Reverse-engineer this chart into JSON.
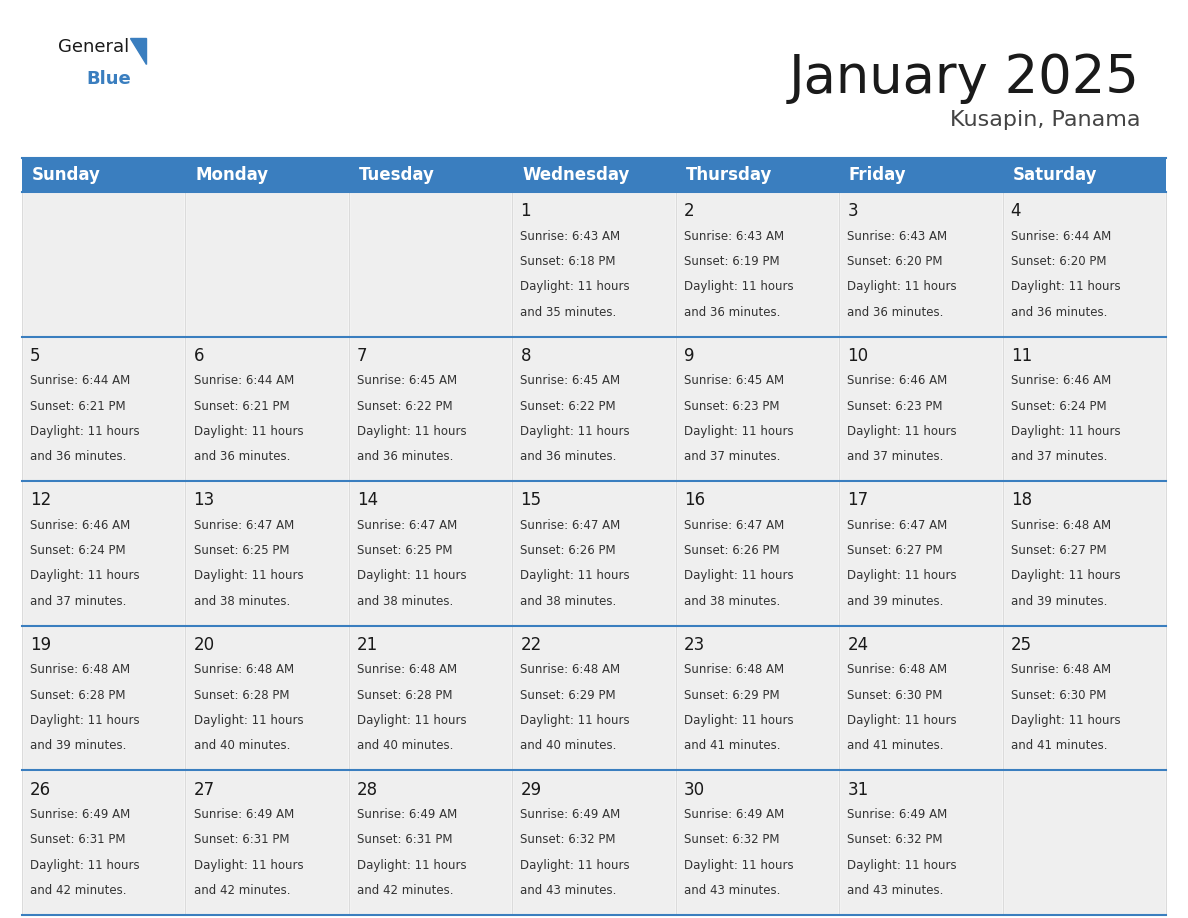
{
  "title": "January 2025",
  "subtitle": "Kusapin, Panama",
  "header_color": "#3a7ebf",
  "header_text_color": "#ffffff",
  "cell_bg_color": "#efefef",
  "border_color": "#3a7ebf",
  "day_names": [
    "Sunday",
    "Monday",
    "Tuesday",
    "Wednesday",
    "Thursday",
    "Friday",
    "Saturday"
  ],
  "title_fontsize": 38,
  "subtitle_fontsize": 16,
  "header_fontsize": 12,
  "day_num_fontsize": 12,
  "cell_text_fontsize": 8.5,
  "logo_general_fontsize": 13,
  "logo_blue_fontsize": 13,
  "days": [
    {
      "day": 1,
      "col": 3,
      "row": 0,
      "sunrise": "6:43 AM",
      "sunset": "6:18 PM",
      "daylight_hours": 11,
      "daylight_minutes": 35
    },
    {
      "day": 2,
      "col": 4,
      "row": 0,
      "sunrise": "6:43 AM",
      "sunset": "6:19 PM",
      "daylight_hours": 11,
      "daylight_minutes": 36
    },
    {
      "day": 3,
      "col": 5,
      "row": 0,
      "sunrise": "6:43 AM",
      "sunset": "6:20 PM",
      "daylight_hours": 11,
      "daylight_minutes": 36
    },
    {
      "day": 4,
      "col": 6,
      "row": 0,
      "sunrise": "6:44 AM",
      "sunset": "6:20 PM",
      "daylight_hours": 11,
      "daylight_minutes": 36
    },
    {
      "day": 5,
      "col": 0,
      "row": 1,
      "sunrise": "6:44 AM",
      "sunset": "6:21 PM",
      "daylight_hours": 11,
      "daylight_minutes": 36
    },
    {
      "day": 6,
      "col": 1,
      "row": 1,
      "sunrise": "6:44 AM",
      "sunset": "6:21 PM",
      "daylight_hours": 11,
      "daylight_minutes": 36
    },
    {
      "day": 7,
      "col": 2,
      "row": 1,
      "sunrise": "6:45 AM",
      "sunset": "6:22 PM",
      "daylight_hours": 11,
      "daylight_minutes": 36
    },
    {
      "day": 8,
      "col": 3,
      "row": 1,
      "sunrise": "6:45 AM",
      "sunset": "6:22 PM",
      "daylight_hours": 11,
      "daylight_minutes": 36
    },
    {
      "day": 9,
      "col": 4,
      "row": 1,
      "sunrise": "6:45 AM",
      "sunset": "6:23 PM",
      "daylight_hours": 11,
      "daylight_minutes": 37
    },
    {
      "day": 10,
      "col": 5,
      "row": 1,
      "sunrise": "6:46 AM",
      "sunset": "6:23 PM",
      "daylight_hours": 11,
      "daylight_minutes": 37
    },
    {
      "day": 11,
      "col": 6,
      "row": 1,
      "sunrise": "6:46 AM",
      "sunset": "6:24 PM",
      "daylight_hours": 11,
      "daylight_minutes": 37
    },
    {
      "day": 12,
      "col": 0,
      "row": 2,
      "sunrise": "6:46 AM",
      "sunset": "6:24 PM",
      "daylight_hours": 11,
      "daylight_minutes": 37
    },
    {
      "day": 13,
      "col": 1,
      "row": 2,
      "sunrise": "6:47 AM",
      "sunset": "6:25 PM",
      "daylight_hours": 11,
      "daylight_minutes": 38
    },
    {
      "day": 14,
      "col": 2,
      "row": 2,
      "sunrise": "6:47 AM",
      "sunset": "6:25 PM",
      "daylight_hours": 11,
      "daylight_minutes": 38
    },
    {
      "day": 15,
      "col": 3,
      "row": 2,
      "sunrise": "6:47 AM",
      "sunset": "6:26 PM",
      "daylight_hours": 11,
      "daylight_minutes": 38
    },
    {
      "day": 16,
      "col": 4,
      "row": 2,
      "sunrise": "6:47 AM",
      "sunset": "6:26 PM",
      "daylight_hours": 11,
      "daylight_minutes": 38
    },
    {
      "day": 17,
      "col": 5,
      "row": 2,
      "sunrise": "6:47 AM",
      "sunset": "6:27 PM",
      "daylight_hours": 11,
      "daylight_minutes": 39
    },
    {
      "day": 18,
      "col": 6,
      "row": 2,
      "sunrise": "6:48 AM",
      "sunset": "6:27 PM",
      "daylight_hours": 11,
      "daylight_minutes": 39
    },
    {
      "day": 19,
      "col": 0,
      "row": 3,
      "sunrise": "6:48 AM",
      "sunset": "6:28 PM",
      "daylight_hours": 11,
      "daylight_minutes": 39
    },
    {
      "day": 20,
      "col": 1,
      "row": 3,
      "sunrise": "6:48 AM",
      "sunset": "6:28 PM",
      "daylight_hours": 11,
      "daylight_minutes": 40
    },
    {
      "day": 21,
      "col": 2,
      "row": 3,
      "sunrise": "6:48 AM",
      "sunset": "6:28 PM",
      "daylight_hours": 11,
      "daylight_minutes": 40
    },
    {
      "day": 22,
      "col": 3,
      "row": 3,
      "sunrise": "6:48 AM",
      "sunset": "6:29 PM",
      "daylight_hours": 11,
      "daylight_minutes": 40
    },
    {
      "day": 23,
      "col": 4,
      "row": 3,
      "sunrise": "6:48 AM",
      "sunset": "6:29 PM",
      "daylight_hours": 11,
      "daylight_minutes": 41
    },
    {
      "day": 24,
      "col": 5,
      "row": 3,
      "sunrise": "6:48 AM",
      "sunset": "6:30 PM",
      "daylight_hours": 11,
      "daylight_minutes": 41
    },
    {
      "day": 25,
      "col": 6,
      "row": 3,
      "sunrise": "6:48 AM",
      "sunset": "6:30 PM",
      "daylight_hours": 11,
      "daylight_minutes": 41
    },
    {
      "day": 26,
      "col": 0,
      "row": 4,
      "sunrise": "6:49 AM",
      "sunset": "6:31 PM",
      "daylight_hours": 11,
      "daylight_minutes": 42
    },
    {
      "day": 27,
      "col": 1,
      "row": 4,
      "sunrise": "6:49 AM",
      "sunset": "6:31 PM",
      "daylight_hours": 11,
      "daylight_minutes": 42
    },
    {
      "day": 28,
      "col": 2,
      "row": 4,
      "sunrise": "6:49 AM",
      "sunset": "6:31 PM",
      "daylight_hours": 11,
      "daylight_minutes": 42
    },
    {
      "day": 29,
      "col": 3,
      "row": 4,
      "sunrise": "6:49 AM",
      "sunset": "6:32 PM",
      "daylight_hours": 11,
      "daylight_minutes": 43
    },
    {
      "day": 30,
      "col": 4,
      "row": 4,
      "sunrise": "6:49 AM",
      "sunset": "6:32 PM",
      "daylight_hours": 11,
      "daylight_minutes": 43
    },
    {
      "day": 31,
      "col": 5,
      "row": 4,
      "sunrise": "6:49 AM",
      "sunset": "6:32 PM",
      "daylight_hours": 11,
      "daylight_minutes": 43
    }
  ]
}
